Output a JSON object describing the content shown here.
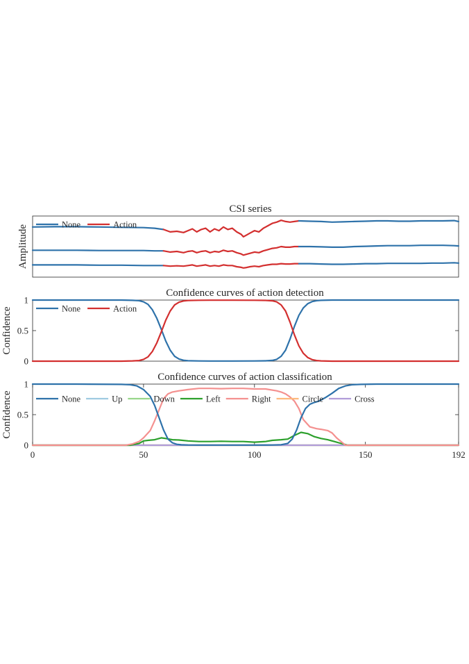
{
  "chart_data": [
    {
      "type": "line",
      "title": "CSI series",
      "ylabel": "Amplitude",
      "xlabel": "",
      "xlim": [
        0,
        192
      ],
      "ylim": [
        0,
        1
      ],
      "yticks": [],
      "legend": {
        "placement": "top-left",
        "entries": [
          {
            "name": "None",
            "color": "#2e72aa"
          },
          {
            "name": "Action",
            "color": "#d32f2f"
          }
        ]
      },
      "segments": [
        {
          "series": "None",
          "x": [
            0,
            59
          ]
        },
        {
          "series": "Action",
          "x": [
            59,
            120
          ]
        },
        {
          "series": "None",
          "x": [
            120,
            192
          ]
        }
      ],
      "traces": [
        {
          "x": [
            0,
            10,
            20,
            30,
            40,
            50,
            55,
            59,
            62,
            65,
            68,
            70,
            72,
            74,
            76,
            78,
            80,
            82,
            84,
            86,
            88,
            90,
            92,
            94,
            95,
            96,
            98,
            100,
            102,
            104,
            106,
            108,
            110,
            112,
            114,
            116,
            118,
            120,
            125,
            130,
            135,
            140,
            145,
            150,
            155,
            160,
            165,
            170,
            175,
            180,
            185,
            190,
            192
          ],
          "y": [
            0.82,
            0.825,
            0.825,
            0.82,
            0.815,
            0.81,
            0.8,
            0.78,
            0.74,
            0.75,
            0.73,
            0.76,
            0.79,
            0.74,
            0.78,
            0.8,
            0.74,
            0.79,
            0.76,
            0.82,
            0.78,
            0.8,
            0.74,
            0.7,
            0.66,
            0.68,
            0.72,
            0.76,
            0.74,
            0.8,
            0.84,
            0.88,
            0.9,
            0.93,
            0.91,
            0.9,
            0.91,
            0.92,
            0.915,
            0.91,
            0.9,
            0.905,
            0.91,
            0.915,
            0.92,
            0.92,
            0.915,
            0.915,
            0.92,
            0.92,
            0.92,
            0.925,
            0.91
          ]
        },
        {
          "x": [
            0,
            10,
            20,
            30,
            40,
            50,
            55,
            59,
            62,
            65,
            68,
            70,
            72,
            74,
            76,
            78,
            80,
            82,
            84,
            86,
            88,
            90,
            92,
            94,
            95,
            96,
            98,
            100,
            102,
            104,
            106,
            108,
            110,
            112,
            114,
            116,
            118,
            120,
            125,
            130,
            135,
            140,
            145,
            150,
            155,
            160,
            165,
            170,
            175,
            180,
            185,
            190,
            192
          ],
          "y": [
            0.44,
            0.44,
            0.44,
            0.435,
            0.435,
            0.435,
            0.43,
            0.43,
            0.41,
            0.42,
            0.4,
            0.42,
            0.43,
            0.4,
            0.42,
            0.43,
            0.4,
            0.42,
            0.41,
            0.44,
            0.42,
            0.43,
            0.4,
            0.38,
            0.36,
            0.37,
            0.39,
            0.41,
            0.4,
            0.43,
            0.45,
            0.47,
            0.48,
            0.5,
            0.49,
            0.49,
            0.5,
            0.5,
            0.5,
            0.495,
            0.49,
            0.49,
            0.5,
            0.505,
            0.51,
            0.515,
            0.515,
            0.515,
            0.52,
            0.52,
            0.52,
            0.515,
            0.51
          ]
        },
        {
          "x": [
            0,
            10,
            20,
            30,
            40,
            50,
            55,
            59,
            62,
            65,
            68,
            70,
            72,
            74,
            76,
            78,
            80,
            82,
            84,
            86,
            88,
            90,
            92,
            94,
            95,
            96,
            98,
            100,
            102,
            104,
            106,
            108,
            110,
            112,
            114,
            116,
            118,
            120,
            125,
            130,
            135,
            140,
            145,
            150,
            155,
            160,
            165,
            170,
            175,
            180,
            185,
            190,
            192
          ],
          "y": [
            0.2,
            0.2,
            0.2,
            0.195,
            0.195,
            0.19,
            0.19,
            0.19,
            0.18,
            0.185,
            0.18,
            0.19,
            0.2,
            0.18,
            0.19,
            0.2,
            0.18,
            0.19,
            0.18,
            0.2,
            0.19,
            0.19,
            0.17,
            0.16,
            0.15,
            0.155,
            0.17,
            0.18,
            0.17,
            0.19,
            0.2,
            0.21,
            0.21,
            0.22,
            0.215,
            0.215,
            0.22,
            0.22,
            0.22,
            0.215,
            0.21,
            0.21,
            0.215,
            0.22,
            0.22,
            0.225,
            0.225,
            0.225,
            0.225,
            0.23,
            0.23,
            0.235,
            0.23
          ]
        }
      ]
    },
    {
      "type": "line",
      "title": "Confidence curves of action detection",
      "ylabel": "Confidence",
      "xlabel": "",
      "xlim": [
        0,
        192
      ],
      "ylim": [
        0,
        1
      ],
      "yticks": [
        0,
        0.5,
        1
      ],
      "ytick_labels": [
        "0",
        "0.5",
        "1"
      ],
      "legend": {
        "placement": "top-left",
        "entries": [
          {
            "name": "None",
            "color": "#2e72aa"
          },
          {
            "name": "Action",
            "color": "#d32f2f"
          }
        ]
      },
      "series": [
        {
          "name": "None",
          "color": "#2e72aa",
          "x": [
            0,
            20,
            40,
            45,
            48,
            50,
            52,
            54,
            56,
            58,
            60,
            62,
            64,
            66,
            68,
            70,
            75,
            80,
            90,
            100,
            105,
            108,
            110,
            112,
            114,
            116,
            118,
            120,
            122,
            124,
            126,
            128,
            130,
            135,
            140,
            150,
            160,
            170,
            180,
            192
          ],
          "y": [
            1,
            1,
            1,
            0.995,
            0.99,
            0.97,
            0.93,
            0.84,
            0.7,
            0.52,
            0.33,
            0.18,
            0.08,
            0.035,
            0.015,
            0.007,
            0.003,
            0.002,
            0.002,
            0.003,
            0.006,
            0.012,
            0.03,
            0.08,
            0.18,
            0.36,
            0.57,
            0.75,
            0.87,
            0.94,
            0.975,
            0.99,
            0.995,
            1,
            1,
            1,
            1,
            1,
            1,
            1
          ]
        },
        {
          "name": "Action",
          "color": "#d32f2f",
          "x": [
            0,
            20,
            40,
            45,
            48,
            50,
            52,
            54,
            56,
            58,
            60,
            62,
            64,
            66,
            68,
            70,
            75,
            80,
            90,
            100,
            105,
            108,
            110,
            112,
            114,
            116,
            118,
            120,
            122,
            124,
            126,
            128,
            130,
            135,
            140,
            150,
            160,
            170,
            180,
            192
          ],
          "y": [
            0,
            0,
            0,
            0.005,
            0.01,
            0.03,
            0.07,
            0.16,
            0.3,
            0.48,
            0.67,
            0.82,
            0.92,
            0.965,
            0.985,
            0.993,
            0.997,
            0.998,
            0.998,
            0.997,
            0.994,
            0.988,
            0.97,
            0.92,
            0.82,
            0.64,
            0.43,
            0.25,
            0.13,
            0.06,
            0.025,
            0.01,
            0.005,
            0,
            0,
            0,
            0,
            0,
            0,
            0
          ]
        }
      ]
    },
    {
      "type": "line",
      "title": "Confidence curves of action classification",
      "ylabel": "Confidence",
      "xlabel": "",
      "xlim": [
        0,
        192
      ],
      "ylim": [
        0,
        1
      ],
      "xticks": [
        0,
        50,
        100,
        150,
        192
      ],
      "xtick_labels": [
        "0",
        "50",
        "100",
        "150",
        "192"
      ],
      "yticks": [
        0,
        0.5,
        1
      ],
      "ytick_labels": [
        "0",
        "0.5",
        "1"
      ],
      "legend": {
        "placement": "top",
        "entries": [
          {
            "name": "None",
            "color": "#2e72aa"
          },
          {
            "name": "Up",
            "color": "#9ecae1"
          },
          {
            "name": "Down",
            "color": "#98d68a"
          },
          {
            "name": "Left",
            "color": "#2ca02c"
          },
          {
            "name": "Right",
            "color": "#f4908f"
          },
          {
            "name": "Circle",
            "color": "#fdb97d"
          },
          {
            "name": "Cross",
            "color": "#b19cd9"
          }
        ]
      },
      "series": [
        {
          "name": "Up",
          "color": "#9ecae1",
          "x": [
            0,
            192
          ],
          "y": [
            0,
            0
          ]
        },
        {
          "name": "Down",
          "color": "#98d68a",
          "x": [
            0,
            192
          ],
          "y": [
            0,
            0
          ]
        },
        {
          "name": "Circle",
          "color": "#fdb97d",
          "x": [
            0,
            192
          ],
          "y": [
            0,
            0
          ]
        },
        {
          "name": "Cross",
          "color": "#b19cd9",
          "x": [
            0,
            192
          ],
          "y": [
            0,
            0
          ]
        },
        {
          "name": "Left",
          "color": "#2ca02c",
          "x": [
            0,
            44,
            48,
            50,
            52,
            55,
            58,
            60,
            63,
            66,
            70,
            75,
            80,
            85,
            90,
            95,
            100,
            105,
            108,
            112,
            115,
            118,
            121,
            124,
            127,
            130,
            133,
            136,
            138,
            140,
            142,
            192
          ],
          "y": [
            0,
            0,
            0.03,
            0.07,
            0.08,
            0.09,
            0.12,
            0.11,
            0.09,
            0.085,
            0.07,
            0.06,
            0.06,
            0.065,
            0.06,
            0.06,
            0.05,
            0.06,
            0.08,
            0.09,
            0.1,
            0.16,
            0.21,
            0.19,
            0.14,
            0.11,
            0.09,
            0.06,
            0.04,
            0.02,
            0,
            0
          ]
        },
        {
          "name": "Right",
          "color": "#f4908f",
          "x": [
            0,
            42,
            45,
            48,
            50,
            53,
            55,
            57,
            59,
            61,
            63,
            66,
            70,
            75,
            80,
            85,
            90,
            95,
            100,
            105,
            110,
            112,
            114,
            116,
            118,
            120,
            122,
            125,
            128,
            130,
            133,
            135,
            137,
            139,
            141,
            192
          ],
          "y": [
            0,
            0,
            0.02,
            0.06,
            0.12,
            0.24,
            0.4,
            0.58,
            0.76,
            0.84,
            0.87,
            0.89,
            0.91,
            0.93,
            0.93,
            0.925,
            0.93,
            0.93,
            0.92,
            0.92,
            0.89,
            0.87,
            0.84,
            0.79,
            0.72,
            0.6,
            0.42,
            0.3,
            0.27,
            0.26,
            0.24,
            0.2,
            0.12,
            0.06,
            0,
            0
          ]
        },
        {
          "name": "None",
          "color": "#2e72aa",
          "x": [
            0,
            20,
            40,
            44,
            47,
            50,
            53,
            55,
            57,
            59,
            61,
            63,
            65,
            67,
            70,
            75,
            80,
            90,
            100,
            108,
            112,
            115,
            117,
            119,
            121,
            123,
            125,
            127,
            129,
            132,
            135,
            138,
            141,
            144,
            148,
            155,
            165,
            175,
            185,
            192
          ],
          "y": [
            1,
            1,
            0.995,
            0.99,
            0.97,
            0.91,
            0.8,
            0.65,
            0.45,
            0.25,
            0.1,
            0.04,
            0.015,
            0.007,
            0.003,
            0.002,
            0.002,
            0.002,
            0.002,
            0.003,
            0.008,
            0.03,
            0.1,
            0.25,
            0.45,
            0.6,
            0.67,
            0.7,
            0.72,
            0.78,
            0.85,
            0.93,
            0.97,
            0.99,
            0.995,
            1,
            1,
            1,
            1,
            1
          ]
        }
      ]
    }
  ]
}
